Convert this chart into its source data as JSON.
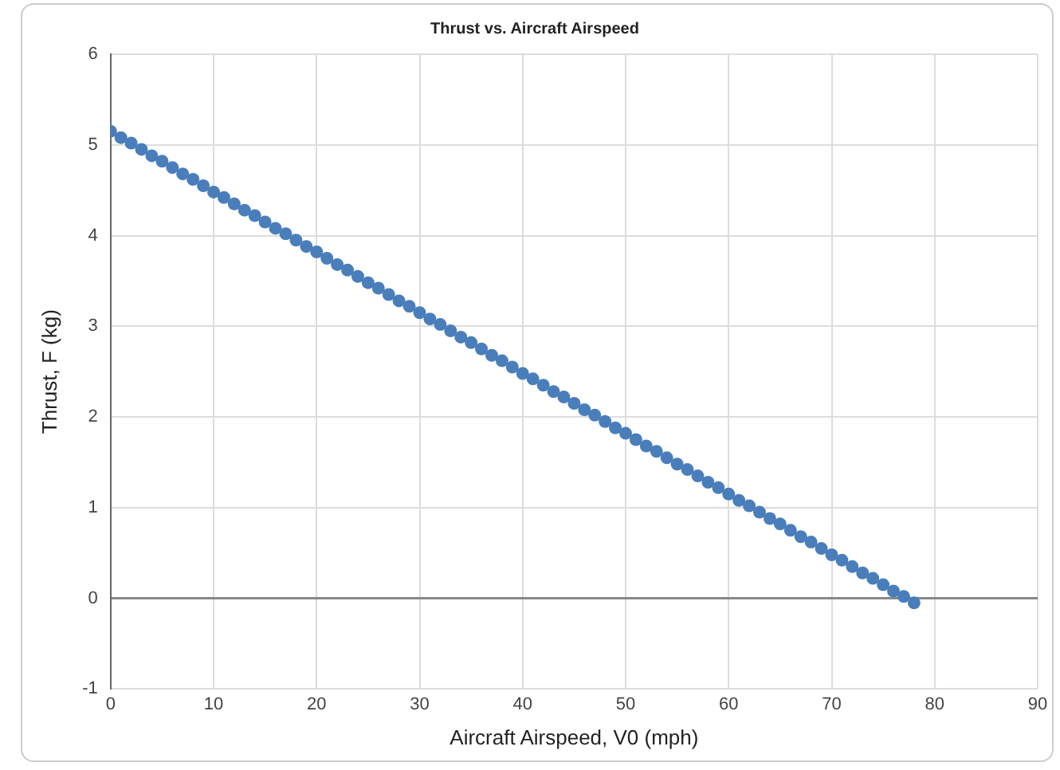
{
  "chart_data": {
    "type": "scatter",
    "title": "Thrust vs. Aircraft Airspeed",
    "xlabel": "Aircraft Airspeed, V0 (mph)",
    "ylabel": "Thrust, F (kg)",
    "x": [
      0,
      1,
      2,
      3,
      4,
      5,
      6,
      7,
      8,
      9,
      10,
      11,
      12,
      13,
      14,
      15,
      16,
      17,
      18,
      19,
      20,
      21,
      22,
      23,
      24,
      25,
      26,
      27,
      28,
      29,
      30,
      31,
      32,
      33,
      34,
      35,
      36,
      37,
      38,
      39,
      40,
      41,
      42,
      43,
      44,
      45,
      46,
      47,
      48,
      49,
      50,
      51,
      52,
      53,
      54,
      55,
      56,
      57,
      58,
      59,
      60,
      61,
      62,
      63,
      64,
      65,
      66,
      67,
      68,
      69,
      70,
      71,
      72,
      73,
      74,
      75,
      76,
      77,
      78
    ],
    "series": [
      {
        "color": "#4a7ebb",
        "values": [
          5.15,
          5.08,
          5.02,
          4.95,
          4.88,
          4.82,
          4.75,
          4.68,
          4.62,
          4.55,
          4.48,
          4.42,
          4.35,
          4.28,
          4.22,
          4.15,
          4.08,
          4.02,
          3.95,
          3.88,
          3.82,
          3.75,
          3.68,
          3.62,
          3.55,
          3.48,
          3.42,
          3.35,
          3.28,
          3.22,
          3.15,
          3.08,
          3.02,
          2.95,
          2.88,
          2.82,
          2.75,
          2.68,
          2.62,
          2.55,
          2.48,
          2.42,
          2.35,
          2.28,
          2.22,
          2.15,
          2.08,
          2.02,
          1.95,
          1.88,
          1.82,
          1.75,
          1.68,
          1.62,
          1.55,
          1.48,
          1.42,
          1.35,
          1.28,
          1.22,
          1.15,
          1.08,
          1.02,
          0.95,
          0.88,
          0.82,
          0.75,
          0.68,
          0.62,
          0.55,
          0.48,
          0.42,
          0.35,
          0.28,
          0.22,
          0.15,
          0.08,
          0.02,
          -0.05
        ]
      }
    ],
    "xlim": [
      0,
      90
    ],
    "xticks": [
      0,
      10,
      20,
      30,
      40,
      50,
      60,
      70,
      80,
      90
    ],
    "ylim": [
      -1,
      6
    ],
    "yticks": [
      -1,
      0,
      1,
      2,
      3,
      4,
      5,
      6
    ],
    "grid": true,
    "legend": false,
    "marker": "circle"
  }
}
